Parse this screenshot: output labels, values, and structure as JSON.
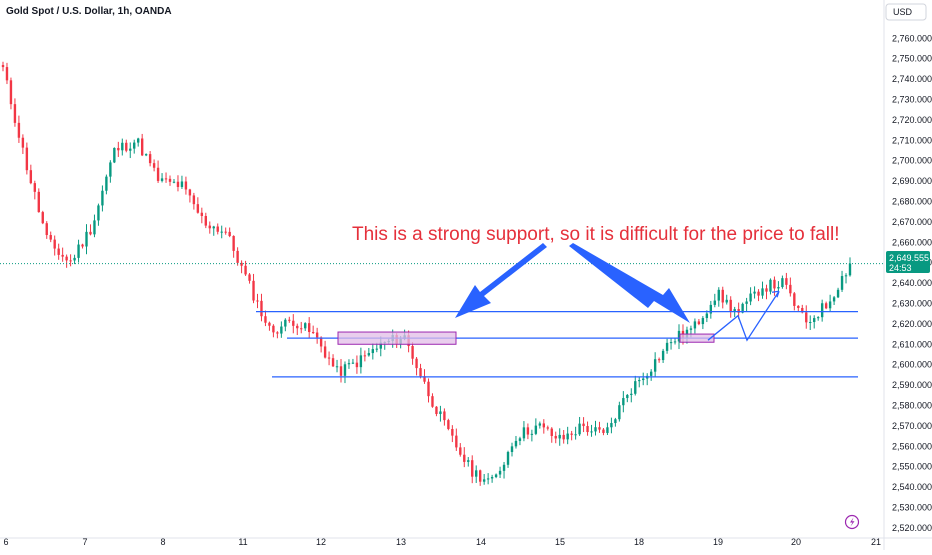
{
  "header": {
    "symbol_title": "Gold Spot / U.S. Dollar, 1h, OANDA",
    "currency_button": "USD"
  },
  "price_tag": {
    "price": "2,649.555",
    "countdown": "24:53",
    "color": "#089981"
  },
  "colors": {
    "bull": "#089981",
    "bear": "#f23645",
    "line": "#2962ff",
    "zone_fill": "#e1bee7",
    "zone_border": "#9c27b0",
    "annotation": "#e5303b",
    "arrow": "#2962ff"
  },
  "annotation": {
    "text": "This is a strong support, so it is difficult for the price to fall!"
  },
  "footer": {
    "replay_icon": "lightning-icon"
  },
  "chart_data": {
    "type": "candlestick",
    "title": "Gold Spot / U.S. Dollar, 1h, OANDA",
    "ylim": [
      2516,
      2768
    ],
    "y_ticks": [
      "2,520.000",
      "2,530.000",
      "2,540.000",
      "2,550.000",
      "2,560.000",
      "2,570.000",
      "2,580.000",
      "2,590.000",
      "2,600.000",
      "2,610.000",
      "2,620.000",
      "2,630.000",
      "2,640.000",
      "2,650.000",
      "2,660.000",
      "2,670.000",
      "2,680.000",
      "2,690.000",
      "2,700.000",
      "2,710.000",
      "2,720.000",
      "2,730.000",
      "2,740.000",
      "2,750.000",
      "2,760.000"
    ],
    "x_ticks": [
      "6",
      "7",
      "8",
      "11",
      "12",
      "13",
      "14",
      "15",
      "18",
      "19",
      "20",
      "21"
    ],
    "current_price": 2649.555,
    "horizontal_levels": [
      2626,
      2613,
      2594
    ],
    "key_points": [
      {
        "label": "6",
        "price": 2745
      },
      {
        "label": "6-7",
        "price": 2700
      },
      {
        "label": "6-7",
        "price": 2660
      },
      {
        "label": "7",
        "price": 2650
      },
      {
        "label": "7",
        "price": 2668
      },
      {
        "label": "8",
        "price": 2705
      },
      {
        "label": "8",
        "price": 2710
      },
      {
        "label": "8",
        "price": 2690
      },
      {
        "label": "11",
        "price": 2688
      },
      {
        "label": "11",
        "price": 2670
      },
      {
        "label": "11",
        "price": 2665
      },
      {
        "label": "11",
        "price": 2640
      },
      {
        "label": "11",
        "price": 2616
      },
      {
        "label": "12",
        "price": 2622
      },
      {
        "label": "12",
        "price": 2614
      },
      {
        "label": "12",
        "price": 2596
      },
      {
        "label": "13",
        "price": 2602
      },
      {
        "label": "13",
        "price": 2610
      },
      {
        "label": "13",
        "price": 2614
      },
      {
        "label": "13",
        "price": 2588
      },
      {
        "label": "14",
        "price": 2566
      },
      {
        "label": "14",
        "price": 2548
      },
      {
        "label": "14",
        "price": 2542
      },
      {
        "label": "14",
        "price": 2565
      },
      {
        "label": "15",
        "price": 2570
      },
      {
        "label": "15",
        "price": 2563
      },
      {
        "label": "15",
        "price": 2570
      },
      {
        "label": "18",
        "price": 2565
      },
      {
        "label": "18",
        "price": 2586
      },
      {
        "label": "18",
        "price": 2598
      },
      {
        "label": "18",
        "price": 2612
      },
      {
        "label": "19",
        "price": 2618
      },
      {
        "label": "19",
        "price": 2635
      },
      {
        "label": "19",
        "price": 2625
      },
      {
        "label": "20",
        "price": 2638
      },
      {
        "label": "20",
        "price": 2640
      },
      {
        "label": "20",
        "price": 2620
      },
      {
        "label": "20",
        "price": 2630
      },
      {
        "label": "21",
        "price": 2649.555
      }
    ],
    "grid": false,
    "legend": "none"
  }
}
